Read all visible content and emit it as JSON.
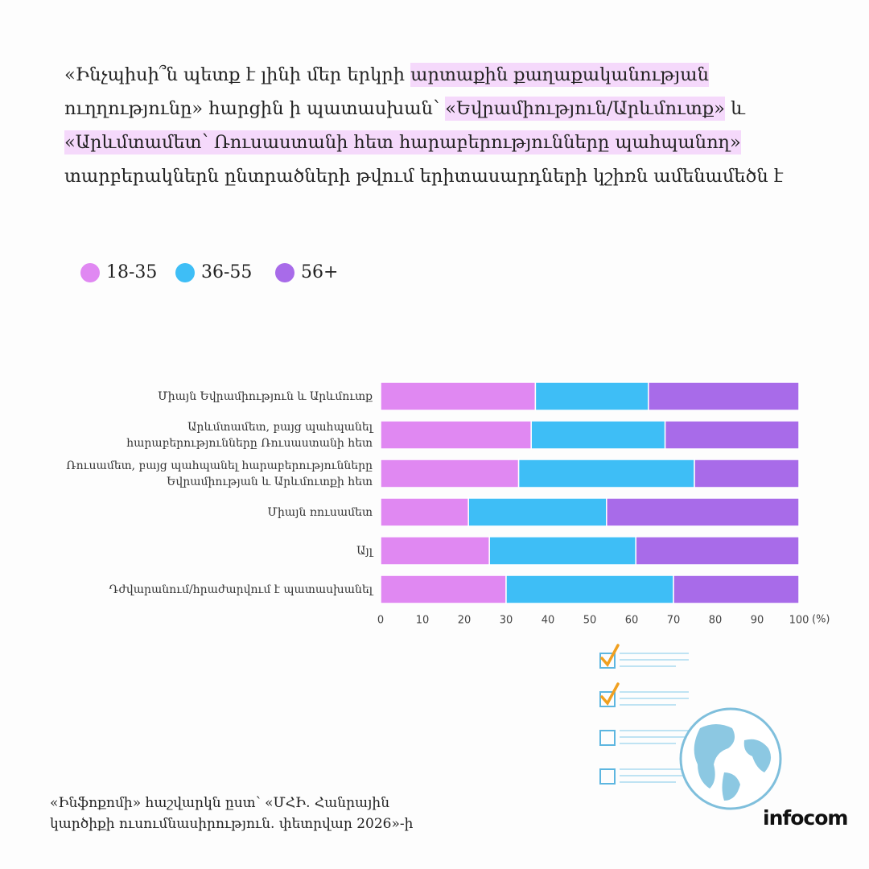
{
  "chart_data": {
    "type": "stacked-bar-horizontal",
    "title_parts": [
      {
        "text": "«Ինչպիսի՞ն պետք է լինի մեր երկրի ",
        "highlight": false
      },
      {
        "text": "արտաքին քաղաքականության",
        "highlight": true
      },
      {
        "text": " ուղղությունը» հարցին ի պատասխան՝ ",
        "highlight": false
      },
      {
        "text": "«Եվրամիություն/Արևմուտք»",
        "highlight": true
      },
      {
        "text": " և ",
        "highlight": false
      },
      {
        "text": "«Արևմտամետ՝ Ռուսաստանի հետ հարաբերությունները պահպանող»",
        "highlight": true
      },
      {
        "text": " տարբերակներն ընտրածների թվում երիտասարդների կշիռն ամենամեծն է",
        "highlight": false
      }
    ],
    "highlight_color": "#f5d9fb",
    "categories": [
      "Միայն Եվրամիություն և Արևմուտք",
      "Արևմտամետ, բայց պահպանել\nհարաբերությունները Ռուսաստանի հետ",
      "Ռուսամետ, բայց պահպանել հարաբերությունները\nԵվրամիության և Արևմուտքի հետ",
      "Միայն ռուսամետ",
      "Այլ",
      "Դժվարանում/հրաժարվում է պատասխանել"
    ],
    "series": [
      {
        "name": "18-35",
        "color": "#e088f2",
        "values": [
          37,
          36,
          33,
          21,
          26,
          30
        ]
      },
      {
        "name": "36-55",
        "color": "#3ebef6",
        "values": [
          27,
          32,
          42,
          33,
          35,
          40
        ]
      },
      {
        "name": "56+",
        "color": "#a86be9",
        "values": [
          36,
          32,
          25,
          46,
          39,
          30
        ]
      }
    ],
    "xlim": [
      0,
      100
    ],
    "xticks": [
      0,
      10,
      20,
      30,
      40,
      50,
      60,
      70,
      80,
      90,
      100
    ],
    "x_unit_label": "(%)",
    "grid": false,
    "legend": "top-left",
    "source": "«Ինֆոքոմի» հաշվարկն ըստ՝ «ՄՀԻ. Հանրային\nկարծիքի ուսումնասիրություն. փետրվար 2026»-ի",
    "logo": "infocom"
  }
}
